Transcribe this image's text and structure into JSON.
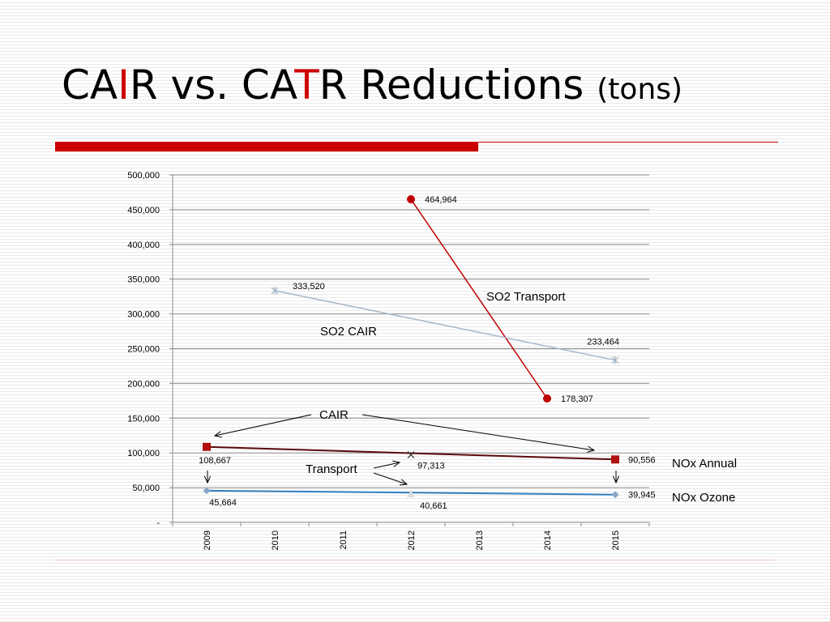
{
  "title": {
    "part1": "CA",
    "part2": "I",
    "part3": "R vs. CA",
    "part4": "T",
    "part5": "R Reductions",
    "unit": "(tons)"
  },
  "colors": {
    "accent": "#cc0000",
    "so2_transport": "#c00000",
    "so2_cair": "#a6b6c9",
    "nox_annual": "#5a0a0a",
    "nox_annual_marker": "#b01010",
    "nox_ozone": "#2f7fc0",
    "nox_ozone_marker": "#8aa6c8"
  },
  "chart_data": {
    "type": "line",
    "categories": [
      "2009",
      "2010",
      "2011",
      "2012",
      "2013",
      "2014",
      "2015"
    ],
    "ylim": [
      0,
      500000
    ],
    "yticks": [
      0,
      50000,
      100000,
      150000,
      200000,
      250000,
      300000,
      350000,
      400000,
      450000,
      500000
    ],
    "ytick_labels": [
      "-",
      "50,000",
      "100,000",
      "150,000",
      "200,000",
      "250,000",
      "300,000",
      "350,000",
      "400,000",
      "450,000",
      "500,000"
    ],
    "grid": true,
    "series": [
      {
        "id": "so2_transport",
        "name": "SO2 Transport",
        "marker": "circle",
        "points": [
          {
            "x": "2012",
            "y": 464964,
            "label": "464,964"
          },
          {
            "x": "2014",
            "y": 178307,
            "label": "178,307"
          }
        ]
      },
      {
        "id": "so2_cair",
        "name": "SO2 CAIR",
        "marker": "star",
        "points": [
          {
            "x": "2010",
            "y": 333520,
            "label": "333,520"
          },
          {
            "x": "2015",
            "y": 233464,
            "label": "233,464"
          }
        ]
      },
      {
        "id": "nox_annual_cair",
        "name": "NOx Annual",
        "marker": "square",
        "points": [
          {
            "x": "2009",
            "y": 108667,
            "label": "108,667"
          },
          {
            "x": "2015",
            "y": 90556,
            "label": "90,556"
          }
        ]
      },
      {
        "id": "nox_annual_transport",
        "marker": "x",
        "points": [
          {
            "x": "2012",
            "y": 97313,
            "label": "97,313"
          }
        ]
      },
      {
        "id": "nox_ozone_cair",
        "name": "NOx Ozone",
        "marker": "diamond",
        "points": [
          {
            "x": "2009",
            "y": 45664,
            "label": "45,664"
          },
          {
            "x": "2015",
            "y": 39945,
            "label": "39,945"
          }
        ]
      },
      {
        "id": "nox_ozone_transport",
        "marker": "triangle",
        "points": [
          {
            "x": "2012",
            "y": 40661,
            "label": "40,661"
          }
        ]
      }
    ],
    "annotations": {
      "cair": "CAIR",
      "transport": "Transport"
    }
  }
}
